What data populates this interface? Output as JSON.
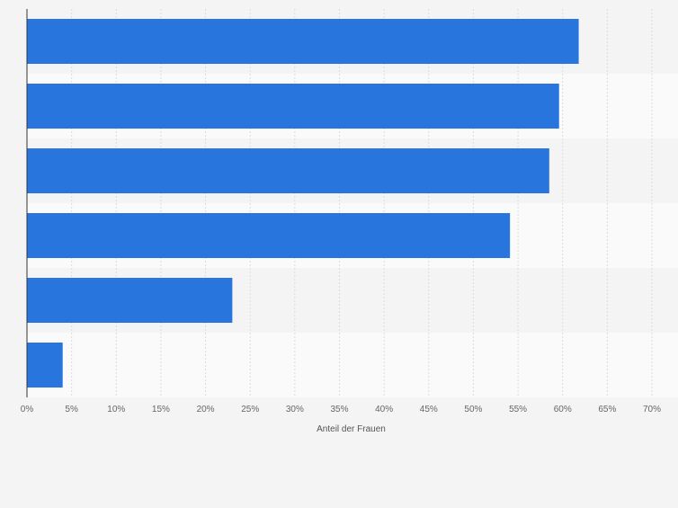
{
  "chart_data": {
    "type": "bar",
    "orientation": "horizontal",
    "categories": [
      "",
      "",
      "",
      "",
      "",
      ""
    ],
    "values": [
      61.8,
      59.6,
      58.5,
      54.1,
      23.0,
      4.0
    ],
    "xlabel": "Anteil der Frauen",
    "ylabel": "",
    "xlim": [
      0,
      70
    ],
    "xticks": [
      0,
      5,
      10,
      15,
      20,
      25,
      30,
      35,
      40,
      45,
      50,
      55,
      60,
      65,
      70
    ],
    "xtick_labels": [
      "0%",
      "5%",
      "10%",
      "15%",
      "20%",
      "25%",
      "30%",
      "35%",
      "40%",
      "45%",
      "50%",
      "55%",
      "60%",
      "65%",
      "70%"
    ],
    "grid": true,
    "legend": "none",
    "bar_color": "#2876dd",
    "row_band_colors": [
      "#f4f4f4",
      "#fafafa"
    ]
  }
}
